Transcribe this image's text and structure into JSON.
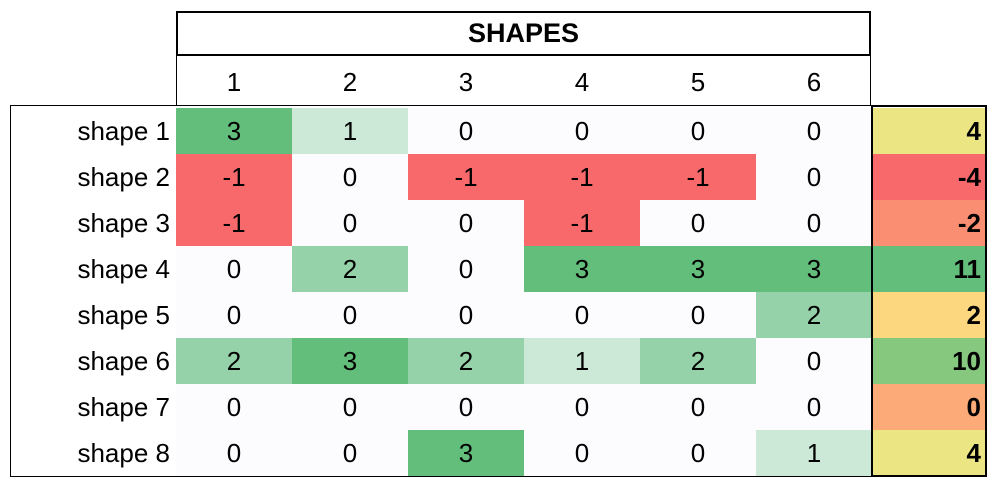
{
  "chart_data": {
    "type": "heatmap",
    "title": "SHAPES",
    "columns": [
      "1",
      "2",
      "3",
      "4",
      "5",
      "6"
    ],
    "rows": [
      "shape 1",
      "shape 2",
      "shape 3",
      "shape 4",
      "shape 5",
      "shape 6",
      "shape 7",
      "shape 8"
    ],
    "values": [
      [
        3,
        1,
        0,
        0,
        0,
        0
      ],
      [
        -1,
        0,
        -1,
        -1,
        -1,
        0
      ],
      [
        -1,
        0,
        0,
        -1,
        0,
        0
      ],
      [
        0,
        2,
        0,
        3,
        3,
        3
      ],
      [
        0,
        0,
        0,
        0,
        0,
        2
      ],
      [
        2,
        3,
        2,
        1,
        2,
        0
      ],
      [
        0,
        0,
        0,
        0,
        0,
        0
      ],
      [
        0,
        0,
        3,
        0,
        0,
        1
      ]
    ],
    "totals": [
      4,
      -4,
      -2,
      11,
      2,
      10,
      0,
      4
    ],
    "colors": {
      "cell": {
        "-1": "#f8696b",
        "0": "#fcfcff",
        "1": "#cce8d6",
        "2": "#96d2a9",
        "3": "#63be7b"
      },
      "total": {
        "-4": "#f8696b",
        "-2": "#fa8e72",
        "0": "#fcab78",
        "2": "#fdd680",
        "4": "#ebe583",
        "10": "#86c97e",
        "11": "#63be7b"
      }
    }
  }
}
